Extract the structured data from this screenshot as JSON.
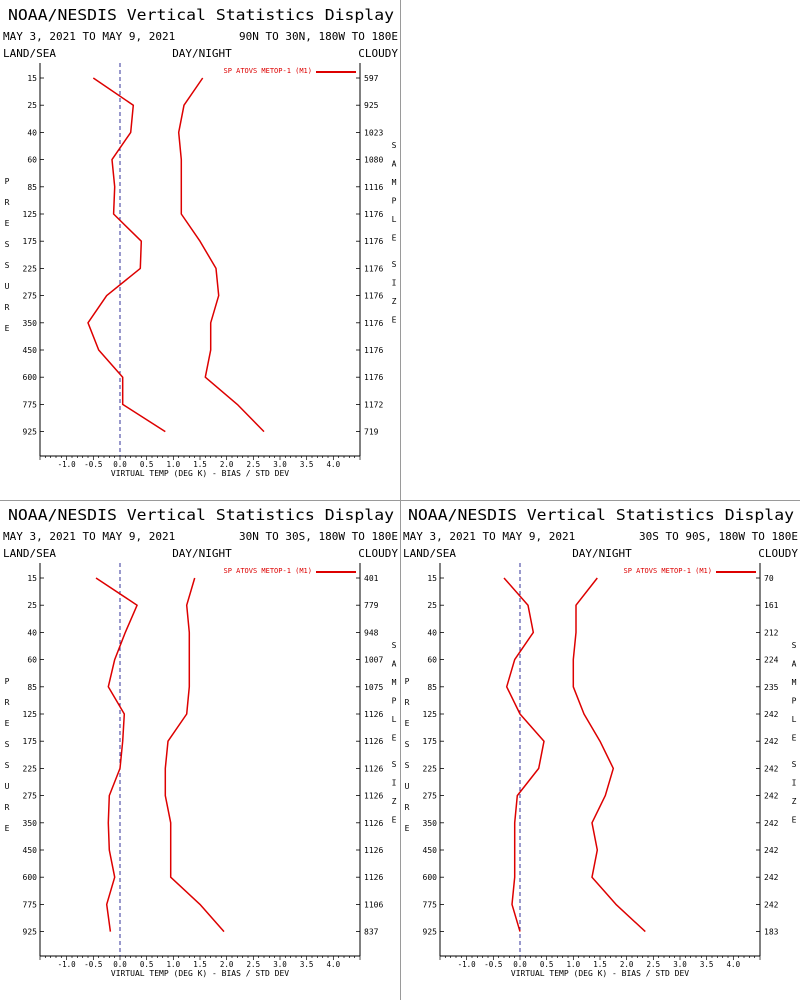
{
  "panels": [
    {
      "title": "NOAA/NESDIS Vertical Statistics Display",
      "date_range": "MAY 3, 2021 TO MAY 9, 2021",
      "region": "90N TO 30N, 180W TO 180E",
      "land_sea": "LAND/SEA",
      "day_night": "DAY/NIGHT",
      "cloudy": "CLOUDY",
      "left_label": "PRESSURE",
      "right_label": "SAMPLE SIZE",
      "sample_sizes": [
        "597",
        "925",
        "1023",
        "1080",
        "1116",
        "1176",
        "1176",
        "1176",
        "1176",
        "1176",
        "1176",
        "1176",
        "1172",
        "719"
      ]
    },
    null,
    {
      "title": "NOAA/NESDIS Vertical Statistics Display",
      "date_range": "MAY 3, 2021 TO MAY 9, 2021",
      "region": "30N TO 30S, 180W TO 180E",
      "land_sea": "LAND/SEA",
      "day_night": "DAY/NIGHT",
      "cloudy": "CLOUDY",
      "left_label": "PRESSURE",
      "right_label": "SAMPLE SIZE",
      "sample_sizes": [
        "401",
        "779",
        "948",
        "1007",
        "1075",
        "1126",
        "1126",
        "1126",
        "1126",
        "1126",
        "1126",
        "1126",
        "1106",
        "837"
      ]
    },
    {
      "title": "NOAA/NESDIS Vertical Statistics Display",
      "date_range": "MAY 3, 2021 TO MAY 9, 2021",
      "region": "30S TO 90S, 180W TO 180E",
      "land_sea": "LAND/SEA",
      "day_night": "DAY/NIGHT",
      "cloudy": "CLOUDY",
      "left_label": "PRESSURE",
      "right_label": "SAMPLE SIZE",
      "sample_sizes": [
        "70",
        "161",
        "212",
        "224",
        "235",
        "242",
        "242",
        "242",
        "242",
        "242",
        "242",
        "242",
        "242",
        "183"
      ]
    }
  ],
  "chart_data": [
    {
      "type": "line",
      "region": "90N TO 30N, 180W TO 180E",
      "xlabel": "VIRTUAL TEMP (DEG K) - BIAS / STD DEV",
      "x_ticks": [
        "-1.0",
        "-0.5",
        "0.0",
        "0.5",
        "1.0",
        "1.5",
        "2.0",
        "2.5",
        "3.0",
        "3.5",
        "4.0"
      ],
      "xlim": [
        -1.5,
        4.5
      ],
      "y_ticks": [
        "15",
        "25",
        "40",
        "60",
        "85",
        "125",
        "175",
        "225",
        "275",
        "350",
        "450",
        "600",
        "775",
        "925"
      ],
      "legend": "SP ATOVS METOP-1 (M1)",
      "series": [
        {
          "name": "bias",
          "values": [
            -0.5,
            0.25,
            0.2,
            -0.15,
            -0.1,
            -0.12,
            0.4,
            0.38,
            -0.25,
            -0.6,
            -0.4,
            0.05,
            0.05,
            0.85
          ]
        },
        {
          "name": "std_dev",
          "values": [
            1.55,
            1.2,
            1.1,
            1.15,
            1.15,
            1.15,
            1.5,
            1.8,
            1.85,
            1.7,
            1.7,
            1.6,
            2.2,
            2.7
          ]
        }
      ]
    },
    null,
    {
      "type": "line",
      "region": "30N TO 30S, 180W TO 180E",
      "xlabel": "VIRTUAL TEMP (DEG K) - BIAS / STD DEV",
      "x_ticks": [
        "-1.0",
        "-0.5",
        "0.0",
        "0.5",
        "1.0",
        "1.5",
        "2.0",
        "2.5",
        "3.0",
        "3.5",
        "4.0"
      ],
      "xlim": [
        -1.5,
        4.5
      ],
      "y_ticks": [
        "15",
        "25",
        "40",
        "60",
        "85",
        "125",
        "175",
        "225",
        "275",
        "350",
        "450",
        "600",
        "775",
        "925"
      ],
      "legend": "SP ATOVS METOP-1 (M1)",
      "series": [
        {
          "name": "bias",
          "values": [
            -0.45,
            0.32,
            0.1,
            -0.1,
            -0.22,
            0.08,
            0.05,
            0.0,
            -0.2,
            -0.22,
            -0.2,
            -0.1,
            -0.25,
            -0.18
          ]
        },
        {
          "name": "std_dev",
          "values": [
            1.4,
            1.25,
            1.3,
            1.3,
            1.3,
            1.25,
            0.9,
            0.85,
            0.85,
            0.95,
            0.95,
            0.95,
            1.5,
            1.95
          ]
        }
      ]
    },
    {
      "type": "line",
      "region": "30S TO 90S, 180W TO 180E",
      "xlabel": "VIRTUAL TEMP (DEG K) - BIAS / STD DEV",
      "x_ticks": [
        "-1.0",
        "-0.5",
        "0.0",
        "0.5",
        "1.0",
        "1.5",
        "2.0",
        "2.5",
        "3.0",
        "3.5",
        "4.0"
      ],
      "xlim": [
        -1.5,
        4.5
      ],
      "y_ticks": [
        "15",
        "25",
        "40",
        "60",
        "85",
        "125",
        "175",
        "225",
        "275",
        "350",
        "450",
        "600",
        "775",
        "925"
      ],
      "legend": "SP ATOVS METOP-1 (M1)",
      "series": [
        {
          "name": "bias",
          "values": [
            -0.3,
            0.15,
            0.25,
            -0.1,
            -0.25,
            0.0,
            0.45,
            0.35,
            -0.05,
            -0.1,
            -0.1,
            -0.1,
            -0.15,
            0.0
          ]
        },
        {
          "name": "std_dev",
          "values": [
            1.45,
            1.05,
            1.05,
            1.0,
            1.0,
            1.2,
            1.5,
            1.75,
            1.6,
            1.35,
            1.45,
            1.35,
            1.8,
            2.35
          ]
        }
      ]
    }
  ],
  "colors": {
    "series": "#dd0000",
    "text": "#000000",
    "zero_line": "#000080",
    "divider": "#9a9a9a"
  }
}
